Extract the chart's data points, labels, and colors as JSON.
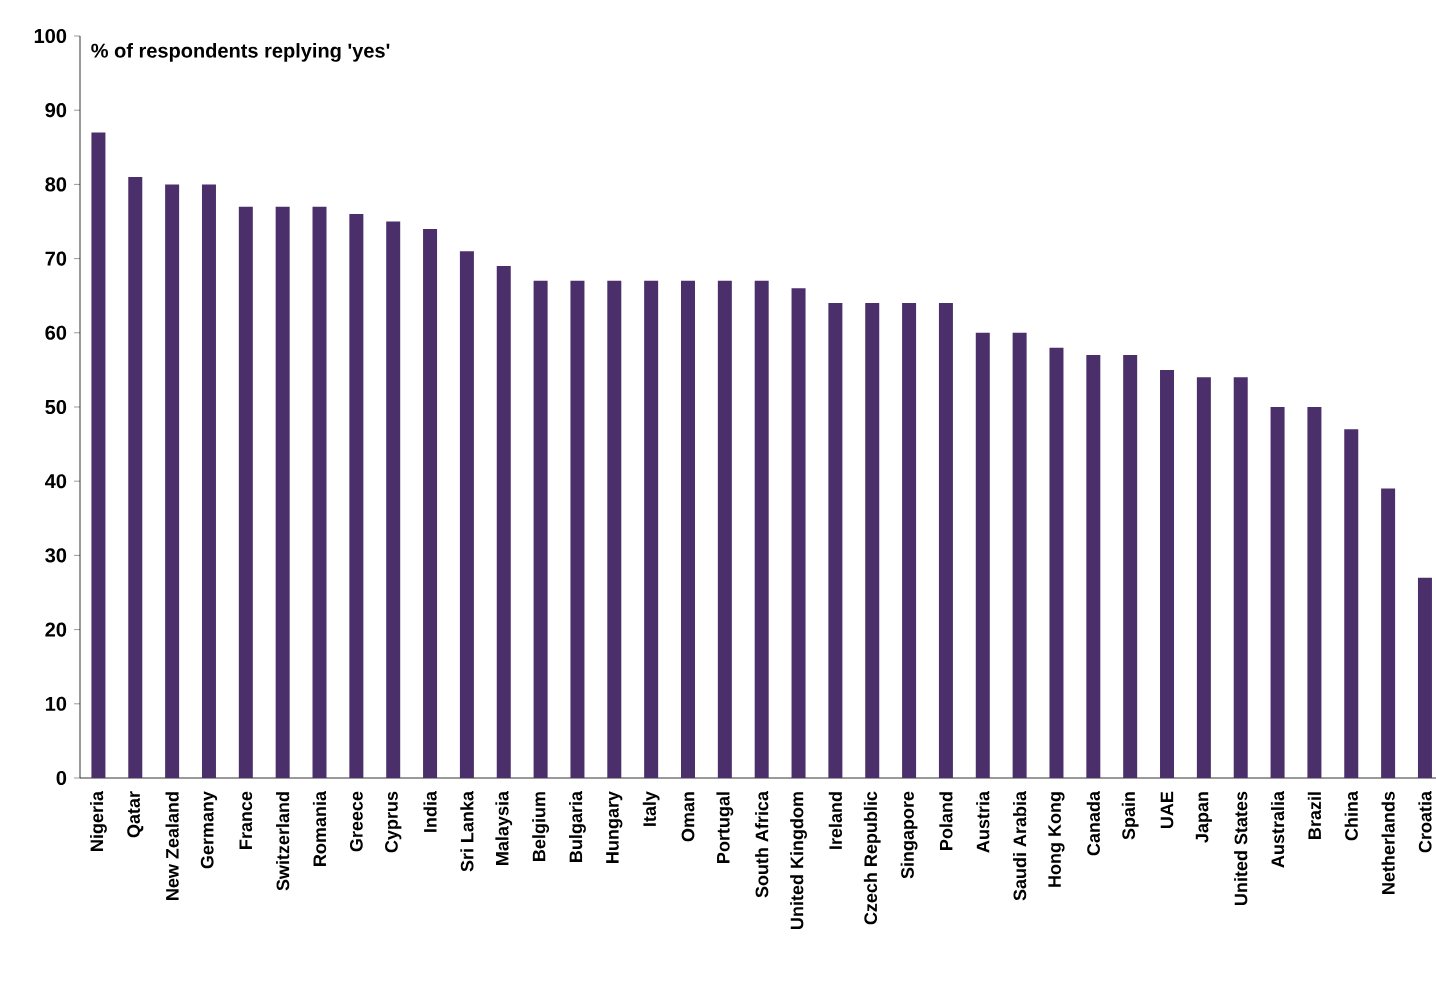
{
  "chart_data": {
    "type": "bar",
    "ylabel": "% of respondents replying 'yes'",
    "categories": [
      "Nigeria",
      "Qatar",
      "New Zealand",
      "Germany",
      "France",
      "Switzerland",
      "Romania",
      "Greece",
      "Cyprus",
      "India",
      "Sri Lanka",
      "Malaysia",
      "Belgium",
      "Bulgaria",
      "Hungary",
      "Italy",
      "Oman",
      "Portugal",
      "South Africa",
      "United Kingdom",
      "Ireland",
      "Czech Republic",
      "Singapore",
      "Poland",
      "Austria",
      "Saudi Arabia",
      "Hong Kong",
      "Canada",
      "Spain",
      "UAE",
      "Japan",
      "United States",
      "Australia",
      "Brazil",
      "China",
      "Netherlands",
      "Croatia"
    ],
    "values": [
      87,
      81,
      80,
      80,
      77,
      77,
      77,
      76,
      75,
      74,
      71,
      69,
      67,
      67,
      67,
      67,
      67,
      67,
      67,
      66,
      64,
      64,
      64,
      64,
      60,
      60,
      58,
      57,
      57,
      55,
      54,
      54,
      50,
      50,
      47,
      39,
      27
    ],
    "color": "#4b2f6b",
    "ylim": [
      0,
      100
    ],
    "yticks": [
      0,
      10,
      20,
      30,
      40,
      50,
      60,
      70,
      80,
      90,
      100
    ]
  }
}
